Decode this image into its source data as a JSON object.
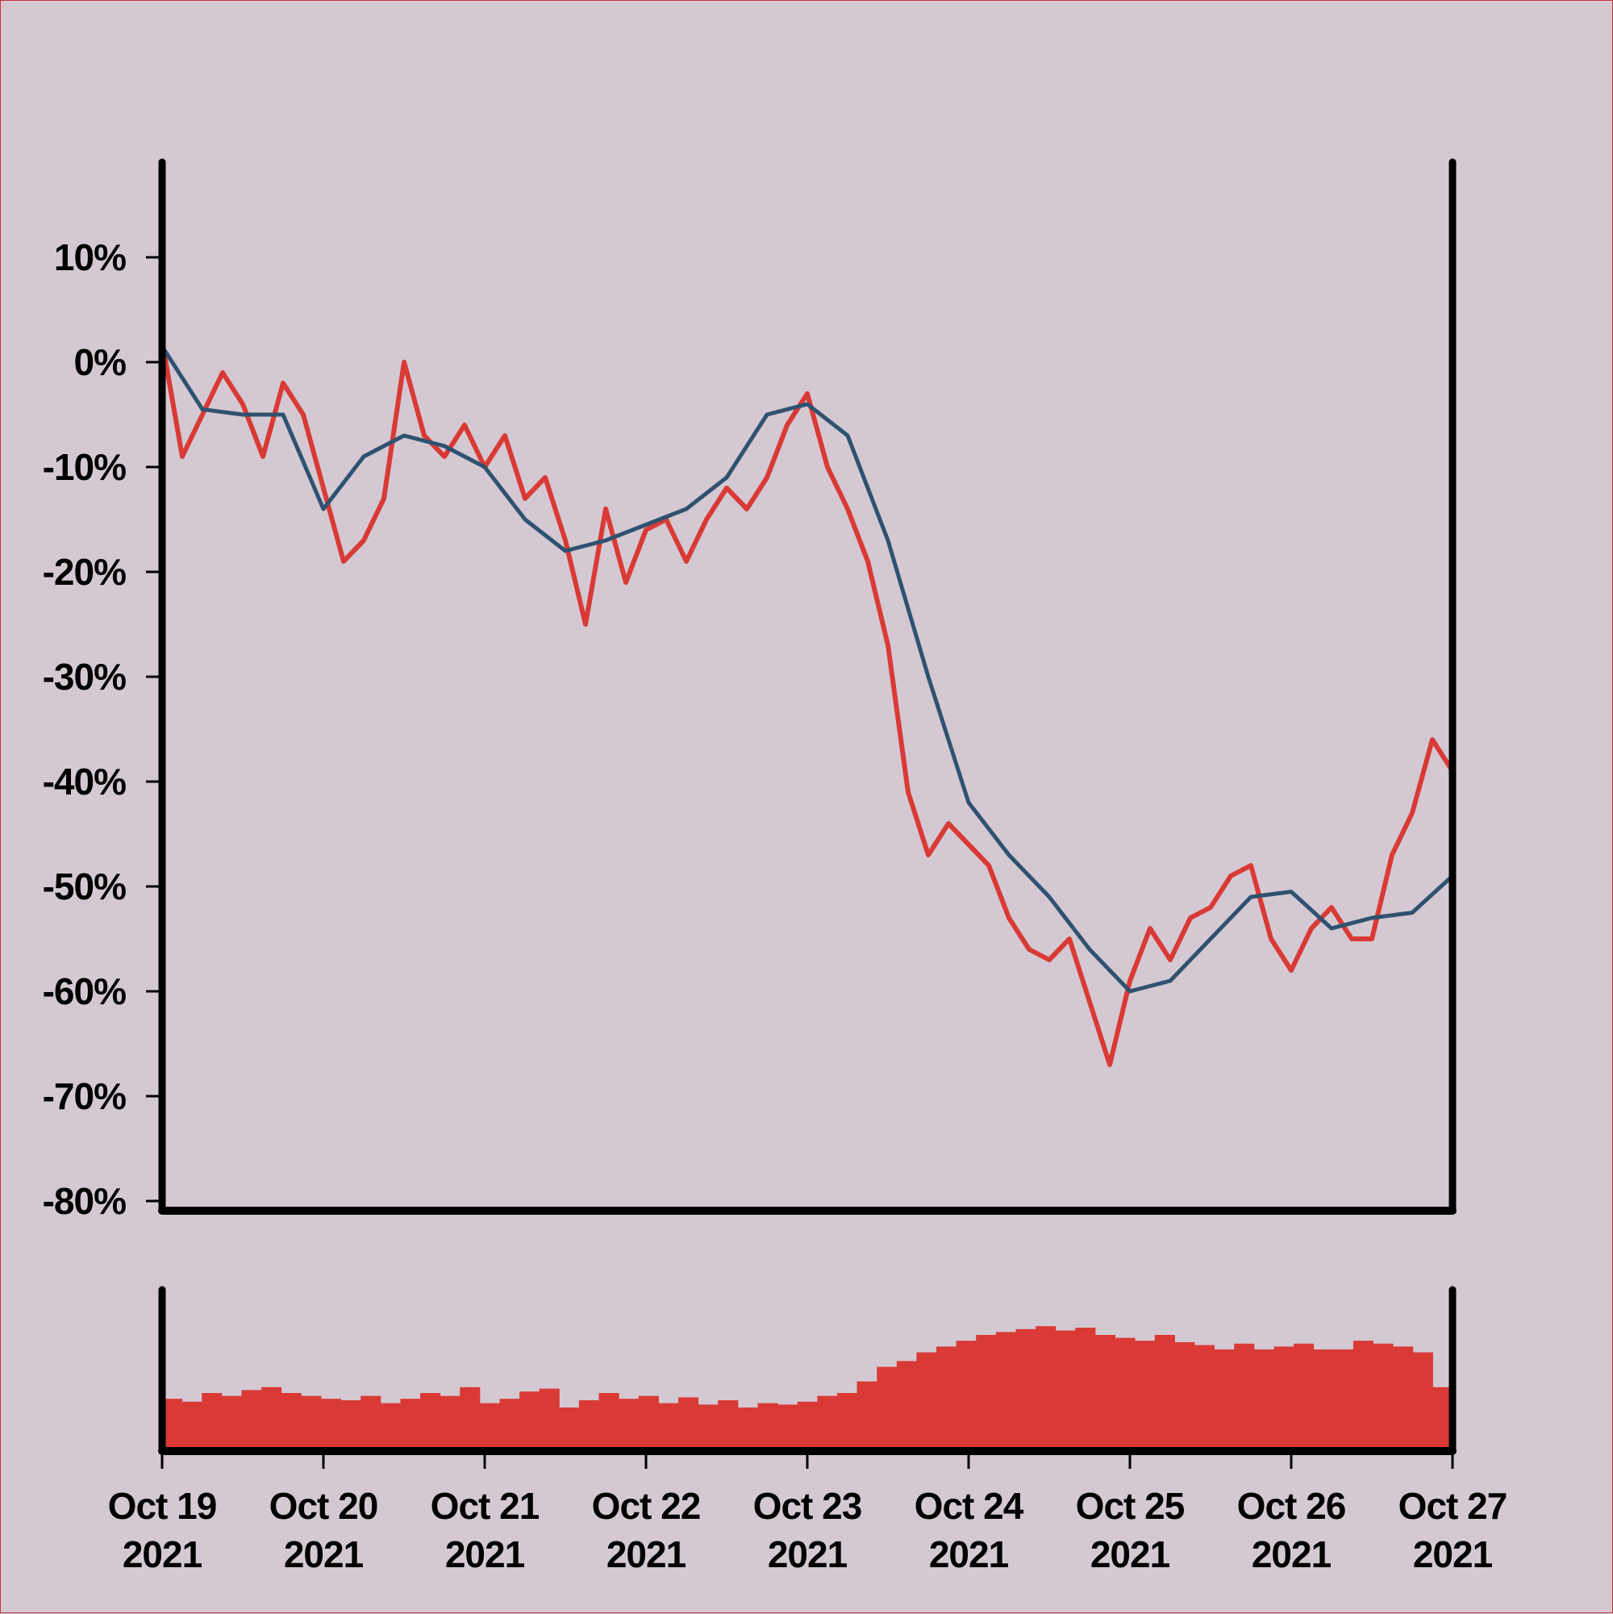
{
  "colors": {
    "background": "#d4c9d2",
    "price_line": "#d93a36",
    "moving_average": "#2f5270",
    "volume_bars": "#d93a36",
    "axes": "#000000"
  },
  "chart_data": {
    "type": "line",
    "title": "",
    "xlabel": "",
    "ylabel": "",
    "ylim": [
      -80,
      10
    ],
    "y_unit": "percent",
    "y_tick_labels": [
      "10%",
      "0%",
      "-10%",
      "-20%",
      "-30%",
      "-40%",
      "-50%",
      "-60%",
      "-70%",
      "-80%"
    ],
    "y_tick_values": [
      10,
      0,
      -10,
      -20,
      -30,
      -40,
      -50,
      -60,
      -70,
      -80
    ],
    "x_range": [
      "2021-10-19",
      "2021-10-27"
    ],
    "x_tick_labels": [
      {
        "month_day": "Oct 19",
        "year": "2021"
      },
      {
        "month_day": "Oct 20",
        "year": "2021"
      },
      {
        "month_day": "Oct 21",
        "year": "2021"
      },
      {
        "month_day": "Oct 22",
        "year": "2021"
      },
      {
        "month_day": "Oct 23",
        "year": "2021"
      },
      {
        "month_day": "Oct 24",
        "year": "2021"
      },
      {
        "month_day": "Oct 25",
        "year": "2021"
      },
      {
        "month_day": "Oct 26",
        "year": "2021"
      },
      {
        "month_day": "Oct 27",
        "year": "2021"
      }
    ],
    "grid": false,
    "legend": "none",
    "series": [
      {
        "role": "price",
        "x": [
          "2021-10-19 00:00",
          "2021-10-19 03:00",
          "2021-10-19 06:00",
          "2021-10-19 09:00",
          "2021-10-19 12:00",
          "2021-10-19 15:00",
          "2021-10-19 18:00",
          "2021-10-19 21:00",
          "2021-10-20 00:00",
          "2021-10-20 03:00",
          "2021-10-20 06:00",
          "2021-10-20 09:00",
          "2021-10-20 12:00",
          "2021-10-20 15:00",
          "2021-10-20 18:00",
          "2021-10-20 21:00",
          "2021-10-21 00:00",
          "2021-10-21 03:00",
          "2021-10-21 06:00",
          "2021-10-21 09:00",
          "2021-10-21 12:00",
          "2021-10-21 15:00",
          "2021-10-21 18:00",
          "2021-10-21 21:00",
          "2021-10-22 00:00",
          "2021-10-22 03:00",
          "2021-10-22 06:00",
          "2021-10-22 09:00",
          "2021-10-22 12:00",
          "2021-10-22 15:00",
          "2021-10-22 18:00",
          "2021-10-22 21:00",
          "2021-10-23 00:00",
          "2021-10-23 03:00",
          "2021-10-23 06:00",
          "2021-10-23 09:00",
          "2021-10-23 12:00",
          "2021-10-23 15:00",
          "2021-10-23 18:00",
          "2021-10-23 21:00",
          "2021-10-24 00:00",
          "2021-10-24 03:00",
          "2021-10-24 06:00",
          "2021-10-24 09:00",
          "2021-10-24 12:00",
          "2021-10-24 15:00",
          "2021-10-24 18:00",
          "2021-10-24 21:00",
          "2021-10-25 00:00",
          "2021-10-25 03:00",
          "2021-10-25 06:00",
          "2021-10-25 09:00",
          "2021-10-25 12:00",
          "2021-10-25 15:00",
          "2021-10-25 18:00",
          "2021-10-25 21:00",
          "2021-10-26 00:00",
          "2021-10-26 03:00",
          "2021-10-26 06:00",
          "2021-10-26 09:00",
          "2021-10-26 12:00",
          "2021-10-26 15:00",
          "2021-10-26 18:00",
          "2021-10-26 21:00",
          "2021-10-27 00:00"
        ],
        "values": [
          2,
          -9,
          -5,
          -1,
          -4,
          -9,
          -2,
          -5,
          -12,
          -19,
          -17,
          -13,
          0,
          -7,
          -9,
          -6,
          -10,
          -7,
          -13,
          -11,
          -17,
          -25,
          -14,
          -21,
          -16,
          -15,
          -19,
          -15,
          -12,
          -14,
          -11,
          -6,
          -3,
          -10,
          -14,
          -19,
          -27,
          -41,
          -47,
          -44,
          -46,
          -48,
          -53,
          -56,
          -57,
          -55,
          -61,
          -67,
          -59,
          -54,
          -57,
          -53,
          -52,
          -49,
          -48,
          -55,
          -58,
          -54,
          -52,
          -55,
          -55,
          -47,
          -43,
          -36,
          -39
        ]
      },
      {
        "role": "moving_average",
        "x": [
          "2021-10-19 00:00",
          "2021-10-19 06:00",
          "2021-10-19 12:00",
          "2021-10-19 18:00",
          "2021-10-20 00:00",
          "2021-10-20 06:00",
          "2021-10-20 12:00",
          "2021-10-20 18:00",
          "2021-10-21 00:00",
          "2021-10-21 06:00",
          "2021-10-21 12:00",
          "2021-10-21 18:00",
          "2021-10-22 00:00",
          "2021-10-22 06:00",
          "2021-10-22 12:00",
          "2021-10-22 18:00",
          "2021-10-23 00:00",
          "2021-10-23 06:00",
          "2021-10-23 12:00",
          "2021-10-23 18:00",
          "2021-10-24 00:00",
          "2021-10-24 06:00",
          "2021-10-24 12:00",
          "2021-10-24 18:00",
          "2021-10-25 00:00",
          "2021-10-25 06:00",
          "2021-10-25 12:00",
          "2021-10-25 18:00",
          "2021-10-26 00:00",
          "2021-10-26 06:00",
          "2021-10-26 12:00",
          "2021-10-26 18:00",
          "2021-10-27 00:00"
        ],
        "values": [
          1.5,
          -4.5,
          -5,
          -5,
          -14,
          -9,
          -7,
          -8,
          -10,
          -15,
          -18,
          -17,
          -15.5,
          -14,
          -11,
          -5,
          -4,
          -7,
          -17,
          -30,
          -42,
          -47,
          -51,
          -56,
          -60,
          -59,
          -55,
          -51,
          -50.5,
          -54,
          -53,
          -52.5,
          -49
        ]
      }
    ],
    "volume": {
      "values_relative": [
        0.36,
        0.34,
        0.4,
        0.38,
        0.42,
        0.44,
        0.4,
        0.38,
        0.36,
        0.35,
        0.38,
        0.33,
        0.36,
        0.4,
        0.38,
        0.44,
        0.33,
        0.36,
        0.41,
        0.43,
        0.3,
        0.35,
        0.4,
        0.36,
        0.38,
        0.33,
        0.37,
        0.32,
        0.35,
        0.3,
        0.33,
        0.32,
        0.34,
        0.38,
        0.4,
        0.48,
        0.58,
        0.62,
        0.68,
        0.72,
        0.76,
        0.8,
        0.82,
        0.84,
        0.86,
        0.83,
        0.85,
        0.8,
        0.78,
        0.76,
        0.8,
        0.75,
        0.73,
        0.7,
        0.74,
        0.7,
        0.72,
        0.74,
        0.7,
        0.7,
        0.76,
        0.74,
        0.72,
        0.68,
        0.44
      ]
    }
  }
}
